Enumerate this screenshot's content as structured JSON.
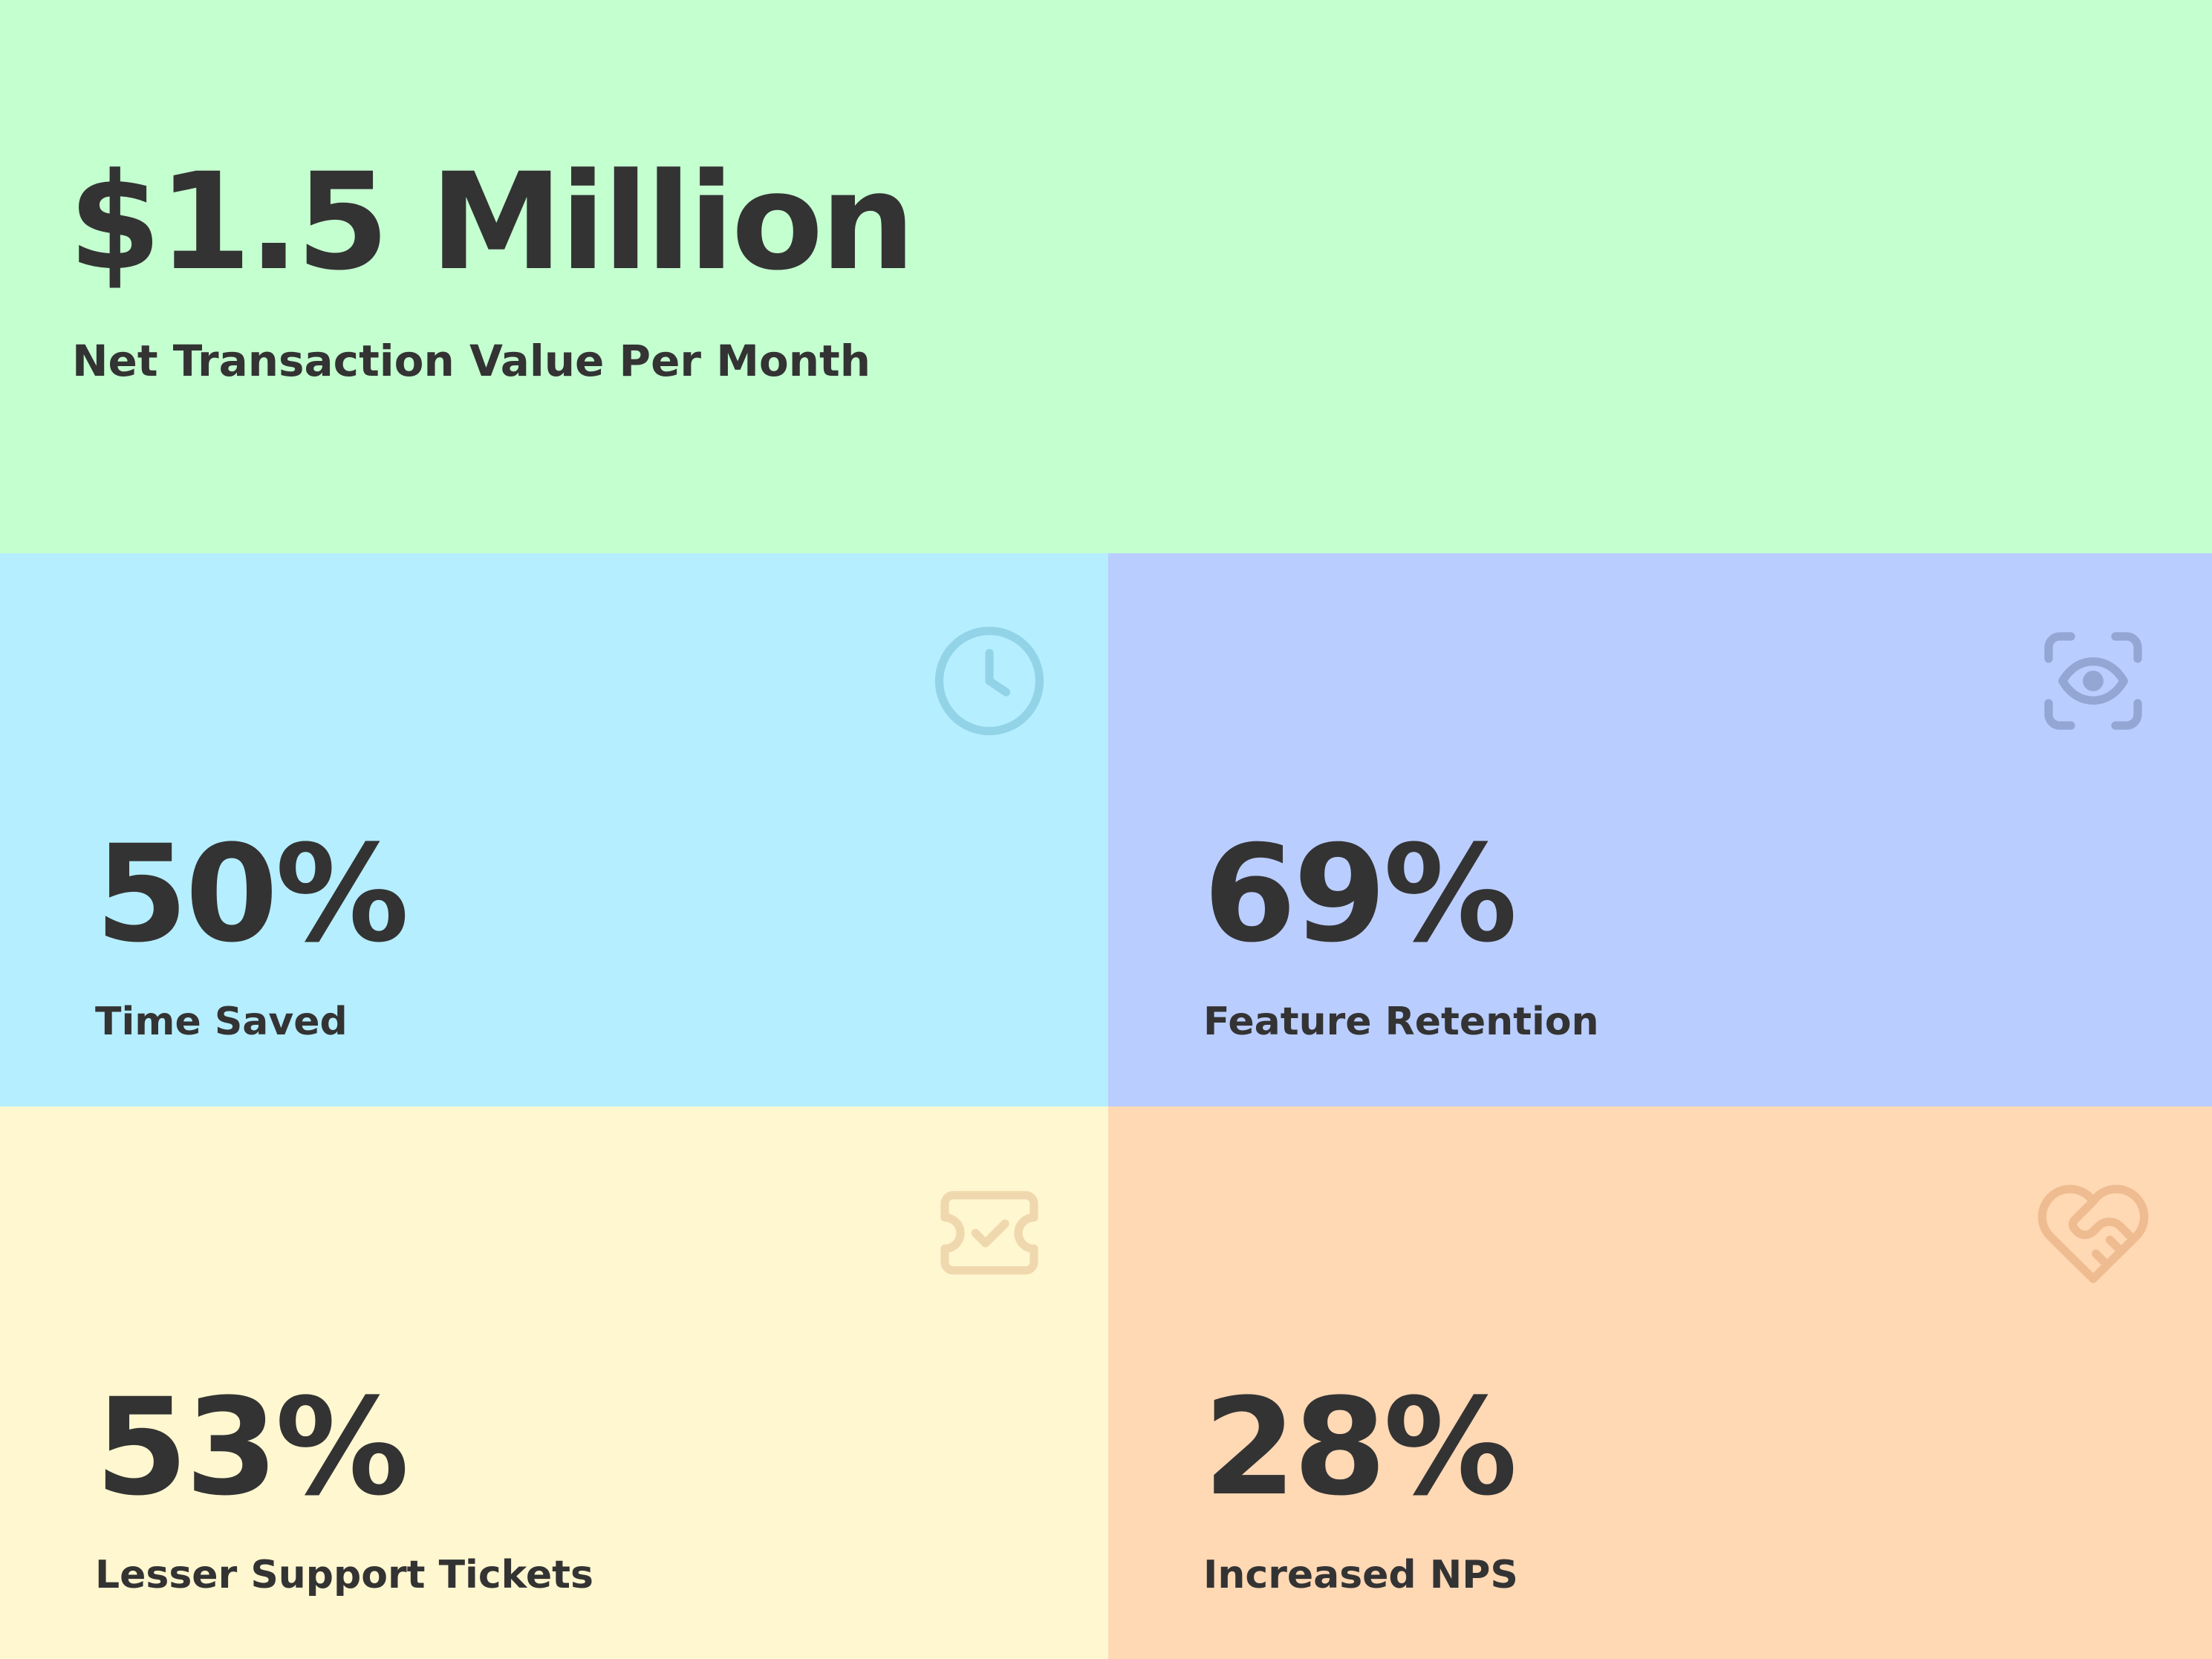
{
  "hero": {
    "value": "$1.5 Million",
    "label": "Net Transaction Value Per Month",
    "bg": "#C4FFD0"
  },
  "stats": [
    {
      "value": "50%",
      "label": "Time Saved",
      "icon": "clock-icon",
      "bg": "#B5EEFF",
      "icon_color": "#93D3E8"
    },
    {
      "value": "69%",
      "label": "Feature Retention",
      "icon": "eye-scan-icon",
      "bg": "#BACDFF",
      "icon_color": "#93A6D4"
    },
    {
      "value": "53%",
      "label": "Lesser Support Tickets",
      "icon": "ticket-check-icon",
      "bg": "#FFF7D0",
      "icon_color": "#F0D8AE"
    },
    {
      "value": "28%",
      "label": "Increased NPS",
      "icon": "heart-handshake-icon",
      "bg": "#FFD8B4",
      "icon_color": "#EEBC90"
    }
  ],
  "text_color": "#333333"
}
